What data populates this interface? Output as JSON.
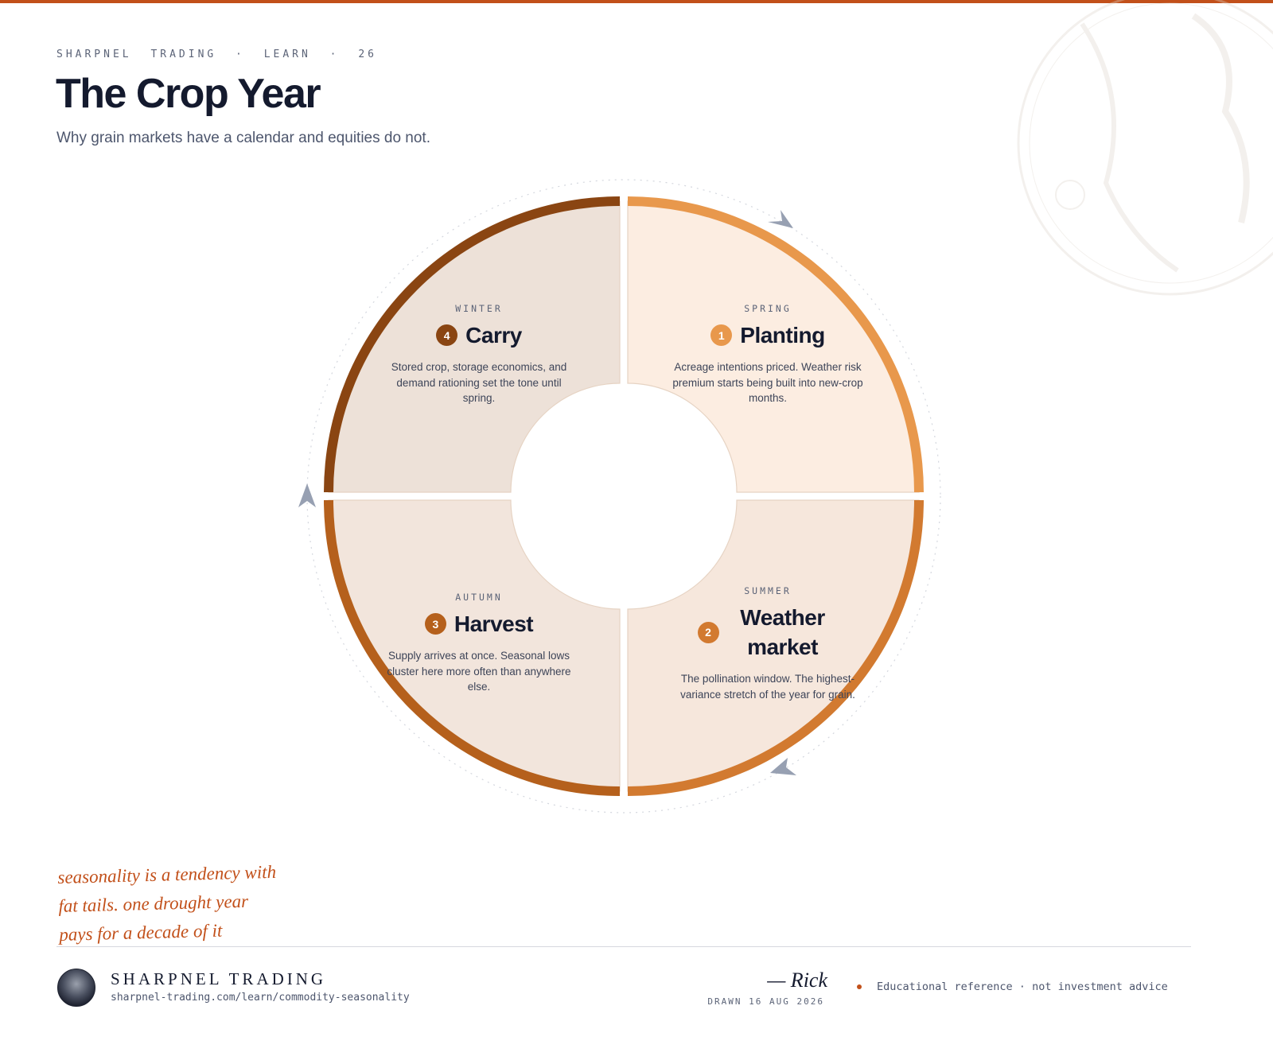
{
  "header": {
    "eyebrow": "SHARPNEL TRADING · LEARN · 26",
    "title": "The Crop Year",
    "subtitle": "Why grain markets have a calendar and equities do not."
  },
  "quadrants": [
    {
      "season": "SPRING",
      "number": 1,
      "title": "Planting",
      "description": "Acreage intentions priced. Weather risk premium starts being built into new-crop months."
    },
    {
      "season": "SUMMER",
      "number": 2,
      "title": "Weather market",
      "description": "The pollination window. The highest-variance stretch of the year for grain."
    },
    {
      "season": "AUTUMN",
      "number": 3,
      "title": "Harvest",
      "description": "Supply arrives at once. Seasonal lows cluster here more often than anywhere else."
    },
    {
      "season": "WINTER",
      "number": 4,
      "title": "Carry",
      "description": "Stored crop, storage economics, and demand rationing set the tone until spring."
    }
  ],
  "note": {
    "lines": [
      "seasonality is a tendency with",
      "fat tails. one drought year",
      "pays for a decade of it"
    ]
  },
  "footer": {
    "brand": "SHARPNEL TRADING",
    "url": "sharpnel-trading.com/learn/commodity-seasonality",
    "signature": "— Rick",
    "drawn": "DRAWN 16 AUG 2026",
    "disclaimer": "Educational reference · not investment advice"
  }
}
